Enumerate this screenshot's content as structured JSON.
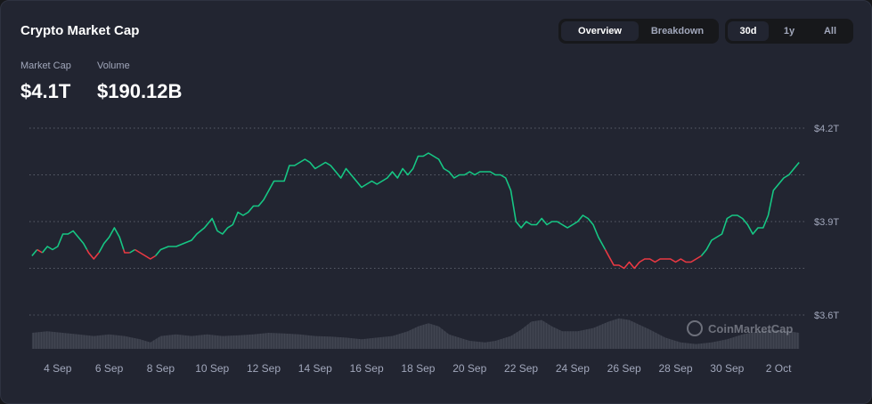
{
  "header": {
    "title": "Crypto Market Cap",
    "view_tabs": [
      {
        "label": "Overview",
        "active": true
      },
      {
        "label": "Breakdown",
        "active": false
      }
    ],
    "range_tabs": [
      {
        "label": "30d",
        "active": true
      },
      {
        "label": "1y",
        "active": false
      },
      {
        "label": "All",
        "active": false
      }
    ]
  },
  "stats": {
    "market_cap_label": "Market Cap",
    "market_cap_value": "$4.1T",
    "volume_label": "Volume",
    "volume_value": "$190.12B"
  },
  "watermark": "CoinMarketCap",
  "colors": {
    "up": "#16c784",
    "down": "#ea3943",
    "background": "#222531",
    "grid": "#5a5e6a",
    "volume": "#4a4e5a"
  },
  "chart_data": {
    "type": "line",
    "title": "",
    "xlabel": "",
    "ylabel": "",
    "x_ticks": [
      "4 Sep",
      "6 Sep",
      "8 Sep",
      "10 Sep",
      "12 Sep",
      "14 Sep",
      "16 Sep",
      "18 Sep",
      "20 Sep",
      "22 Sep",
      "24 Sep",
      "26 Sep",
      "28 Sep",
      "30 Sep",
      "2 Oct"
    ],
    "x_tick_days": [
      4,
      6,
      8,
      10,
      12,
      14,
      16,
      18,
      20,
      22,
      24,
      26,
      28,
      30,
      32
    ],
    "y_ticks": [
      "$4.2T",
      "$3.9T",
      "$3.6T"
    ],
    "y_tick_values": [
      4.2,
      3.9,
      3.6
    ],
    "ylim": [
      3.6,
      4.2
    ],
    "xlim": [
      2.9,
      33.0
    ],
    "gridlines_dotted": [
      4.2,
      4.05,
      3.9,
      3.75,
      3.6
    ],
    "baseline": 3.81,
    "series": [
      {
        "points": [
          [
            3.0,
            3.79
          ],
          [
            3.2,
            3.81
          ],
          [
            3.4,
            3.8
          ],
          [
            3.6,
            3.82
          ],
          [
            3.8,
            3.81
          ],
          [
            4.0,
            3.82
          ],
          [
            4.2,
            3.86
          ],
          [
            4.4,
            3.86
          ],
          [
            4.6,
            3.87
          ],
          [
            4.8,
            3.85
          ],
          [
            5.0,
            3.83
          ],
          [
            5.2,
            3.8
          ],
          [
            5.4,
            3.78
          ],
          [
            5.6,
            3.8
          ],
          [
            5.8,
            3.83
          ],
          [
            6.0,
            3.85
          ],
          [
            6.2,
            3.88
          ],
          [
            6.4,
            3.85
          ],
          [
            6.6,
            3.8
          ],
          [
            6.8,
            3.8
          ],
          [
            7.0,
            3.81
          ],
          [
            7.2,
            3.8
          ],
          [
            7.4,
            3.79
          ],
          [
            7.6,
            3.78
          ],
          [
            7.8,
            3.79
          ],
          [
            8.0,
            3.81
          ],
          [
            8.3,
            3.82
          ],
          [
            8.6,
            3.82
          ],
          [
            8.9,
            3.83
          ],
          [
            9.2,
            3.84
          ],
          [
            9.4,
            3.86
          ],
          [
            9.7,
            3.88
          ],
          [
            10.0,
            3.91
          ],
          [
            10.2,
            3.87
          ],
          [
            10.4,
            3.86
          ],
          [
            10.6,
            3.88
          ],
          [
            10.8,
            3.89
          ],
          [
            11.0,
            3.93
          ],
          [
            11.2,
            3.92
          ],
          [
            11.4,
            3.93
          ],
          [
            11.6,
            3.95
          ],
          [
            11.8,
            3.95
          ],
          [
            12.0,
            3.97
          ],
          [
            12.2,
            4.0
          ],
          [
            12.4,
            4.03
          ],
          [
            12.6,
            4.03
          ],
          [
            12.8,
            4.03
          ],
          [
            13.0,
            4.08
          ],
          [
            13.2,
            4.08
          ],
          [
            13.4,
            4.09
          ],
          [
            13.6,
            4.1
          ],
          [
            13.8,
            4.09
          ],
          [
            14.0,
            4.07
          ],
          [
            14.2,
            4.08
          ],
          [
            14.4,
            4.09
          ],
          [
            14.6,
            4.08
          ],
          [
            14.8,
            4.06
          ],
          [
            15.0,
            4.04
          ],
          [
            15.2,
            4.07
          ],
          [
            15.4,
            4.05
          ],
          [
            15.6,
            4.03
          ],
          [
            15.8,
            4.01
          ],
          [
            16.0,
            4.02
          ],
          [
            16.2,
            4.03
          ],
          [
            16.4,
            4.02
          ],
          [
            16.6,
            4.03
          ],
          [
            16.8,
            4.04
          ],
          [
            17.0,
            4.06
          ],
          [
            17.2,
            4.04
          ],
          [
            17.4,
            4.07
          ],
          [
            17.6,
            4.05
          ],
          [
            17.8,
            4.07
          ],
          [
            18.0,
            4.11
          ],
          [
            18.2,
            4.11
          ],
          [
            18.4,
            4.12
          ],
          [
            18.6,
            4.11
          ],
          [
            18.8,
            4.1
          ],
          [
            19.0,
            4.07
          ],
          [
            19.2,
            4.06
          ],
          [
            19.4,
            4.04
          ],
          [
            19.6,
            4.05
          ],
          [
            19.8,
            4.05
          ],
          [
            20.0,
            4.06
          ],
          [
            20.2,
            4.05
          ],
          [
            20.4,
            4.06
          ],
          [
            20.6,
            4.06
          ],
          [
            20.8,
            4.06
          ],
          [
            21.0,
            4.05
          ],
          [
            21.2,
            4.05
          ],
          [
            21.4,
            4.04
          ],
          [
            21.6,
            4.0
          ],
          [
            21.8,
            3.9
          ],
          [
            22.0,
            3.88
          ],
          [
            22.2,
            3.9
          ],
          [
            22.4,
            3.89
          ],
          [
            22.6,
            3.89
          ],
          [
            22.8,
            3.91
          ],
          [
            23.0,
            3.89
          ],
          [
            23.2,
            3.9
          ],
          [
            23.4,
            3.9
          ],
          [
            23.6,
            3.89
          ],
          [
            23.8,
            3.88
          ],
          [
            24.0,
            3.89
          ],
          [
            24.2,
            3.9
          ],
          [
            24.4,
            3.92
          ],
          [
            24.6,
            3.91
          ],
          [
            24.8,
            3.89
          ],
          [
            25.0,
            3.85
          ],
          [
            25.2,
            3.82
          ],
          [
            25.4,
            3.79
          ],
          [
            25.6,
            3.76
          ],
          [
            25.8,
            3.76
          ],
          [
            26.0,
            3.75
          ],
          [
            26.2,
            3.77
          ],
          [
            26.4,
            3.75
          ],
          [
            26.6,
            3.77
          ],
          [
            26.8,
            3.78
          ],
          [
            27.0,
            3.78
          ],
          [
            27.2,
            3.77
          ],
          [
            27.4,
            3.78
          ],
          [
            27.6,
            3.78
          ],
          [
            27.8,
            3.78
          ],
          [
            28.0,
            3.77
          ],
          [
            28.2,
            3.78
          ],
          [
            28.4,
            3.77
          ],
          [
            28.6,
            3.77
          ],
          [
            28.8,
            3.78
          ],
          [
            29.0,
            3.79
          ],
          [
            29.2,
            3.81
          ],
          [
            29.4,
            3.84
          ],
          [
            29.6,
            3.85
          ],
          [
            29.8,
            3.86
          ],
          [
            30.0,
            3.91
          ],
          [
            30.2,
            3.92
          ],
          [
            30.4,
            3.92
          ],
          [
            30.6,
            3.91
          ],
          [
            30.8,
            3.89
          ],
          [
            31.0,
            3.86
          ],
          [
            31.2,
            3.88
          ],
          [
            31.4,
            3.88
          ],
          [
            31.6,
            3.92
          ],
          [
            31.8,
            4.0
          ],
          [
            32.0,
            4.02
          ],
          [
            32.2,
            4.04
          ],
          [
            32.4,
            4.05
          ],
          [
            32.6,
            4.07
          ],
          [
            32.8,
            4.09
          ]
        ]
      }
    ],
    "volume": [
      [
        3.0,
        0.5
      ],
      [
        3.6,
        0.55
      ],
      [
        4.2,
        0.5
      ],
      [
        4.8,
        0.45
      ],
      [
        5.4,
        0.4
      ],
      [
        6.0,
        0.45
      ],
      [
        6.6,
        0.4
      ],
      [
        7.2,
        0.3
      ],
      [
        7.6,
        0.2
      ],
      [
        8.0,
        0.4
      ],
      [
        8.6,
        0.45
      ],
      [
        9.2,
        0.4
      ],
      [
        9.8,
        0.45
      ],
      [
        10.4,
        0.4
      ],
      [
        11.0,
        0.42
      ],
      [
        11.6,
        0.45
      ],
      [
        12.2,
        0.5
      ],
      [
        12.8,
        0.48
      ],
      [
        13.4,
        0.45
      ],
      [
        14.0,
        0.4
      ],
      [
        14.6,
        0.38
      ],
      [
        15.2,
        0.35
      ],
      [
        15.8,
        0.3
      ],
      [
        16.4,
        0.35
      ],
      [
        17.0,
        0.4
      ],
      [
        17.6,
        0.55
      ],
      [
        18.0,
        0.7
      ],
      [
        18.4,
        0.8
      ],
      [
        18.8,
        0.7
      ],
      [
        19.2,
        0.45
      ],
      [
        19.6,
        0.35
      ],
      [
        20.0,
        0.25
      ],
      [
        20.6,
        0.2
      ],
      [
        21.0,
        0.25
      ],
      [
        21.6,
        0.4
      ],
      [
        22.0,
        0.6
      ],
      [
        22.4,
        0.85
      ],
      [
        22.8,
        0.9
      ],
      [
        23.2,
        0.7
      ],
      [
        23.6,
        0.55
      ],
      [
        24.2,
        0.55
      ],
      [
        24.8,
        0.65
      ],
      [
        25.4,
        0.85
      ],
      [
        25.8,
        0.95
      ],
      [
        26.2,
        0.9
      ],
      [
        26.6,
        0.75
      ],
      [
        27.0,
        0.6
      ],
      [
        27.6,
        0.35
      ],
      [
        28.2,
        0.2
      ],
      [
        28.8,
        0.15
      ],
      [
        29.4,
        0.2
      ],
      [
        30.0,
        0.3
      ],
      [
        30.6,
        0.45
      ],
      [
        31.2,
        0.55
      ],
      [
        31.8,
        0.6
      ],
      [
        32.4,
        0.55
      ],
      [
        32.8,
        0.5
      ]
    ]
  }
}
